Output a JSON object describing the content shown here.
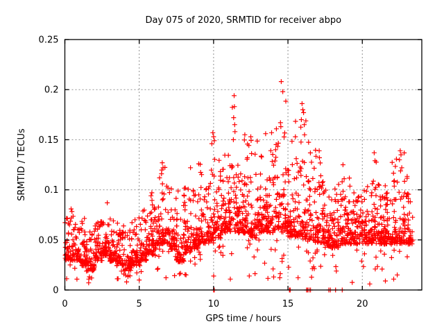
{
  "chart_data": {
    "type": "scatter",
    "title": "Day 075 of 2020, SRMTID for receiver abpo",
    "xlabel": "GPS time / hours",
    "ylabel": "SRMTID / TECUs",
    "xlim": [
      0,
      24
    ],
    "ylim": [
      0,
      0.25
    ],
    "xticks": [
      0,
      5,
      10,
      15,
      20
    ],
    "xticklabels": [
      "0",
      "5",
      "10",
      "15",
      "20"
    ],
    "yticks": [
      0,
      0.05,
      0.1,
      0.15,
      0.2,
      0.25
    ],
    "yticklabels": [
      "0",
      "0.05",
      "0.1",
      "0.15",
      "0.2",
      "0.25"
    ],
    "grid": true,
    "legend": "none",
    "marker": "plus",
    "marker_color": "#ff0000",
    "grid_color": "#909090",
    "frame_color": "#000000",
    "background_color": "#ffffff",
    "series_name": "SRMTID",
    "data_end_hour": 23.4,
    "density_model": {
      "note": "dense 30s-sampled scatter summarized as half-hour bins read from the plot",
      "columns": [
        "hour_start",
        "band_low",
        "band_high",
        "envelope_max"
      ],
      "points_per_bin": 48,
      "seed": 20200751,
      "bins": [
        [
          0.0,
          0.025,
          0.065,
          0.085
        ],
        [
          0.5,
          0.025,
          0.06,
          0.08
        ],
        [
          1.0,
          0.02,
          0.055,
          0.077
        ],
        [
          1.5,
          0.015,
          0.05,
          0.068
        ],
        [
          2.0,
          0.025,
          0.06,
          0.08
        ],
        [
          2.5,
          0.03,
          0.065,
          0.087
        ],
        [
          3.0,
          0.025,
          0.055,
          0.072
        ],
        [
          3.5,
          0.02,
          0.055,
          0.075
        ],
        [
          4.0,
          0.015,
          0.05,
          0.065
        ],
        [
          4.5,
          0.02,
          0.055,
          0.075
        ],
        [
          5.0,
          0.025,
          0.06,
          0.08
        ],
        [
          5.5,
          0.03,
          0.07,
          0.095
        ],
        [
          6.0,
          0.035,
          0.08,
          0.112
        ],
        [
          6.5,
          0.04,
          0.09,
          0.125
        ],
        [
          7.0,
          0.035,
          0.08,
          0.11
        ],
        [
          7.5,
          0.022,
          0.07,
          0.1
        ],
        [
          8.0,
          0.03,
          0.08,
          0.12
        ],
        [
          8.5,
          0.035,
          0.085,
          0.123
        ],
        [
          9.0,
          0.04,
          0.09,
          0.126
        ],
        [
          9.5,
          0.04,
          0.095,
          0.15
        ],
        [
          10.0,
          0.045,
          0.1,
          0.135
        ],
        [
          10.5,
          0.05,
          0.108,
          0.145
        ],
        [
          11.0,
          0.05,
          0.112,
          0.19
        ],
        [
          11.5,
          0.05,
          0.108,
          0.15
        ],
        [
          12.0,
          0.05,
          0.105,
          0.152
        ],
        [
          12.5,
          0.045,
          0.1,
          0.15
        ],
        [
          13.0,
          0.05,
          0.108,
          0.155
        ],
        [
          13.5,
          0.05,
          0.108,
          0.155
        ],
        [
          14.0,
          0.05,
          0.112,
          0.17
        ],
        [
          14.5,
          0.05,
          0.115,
          0.2
        ],
        [
          15.0,
          0.045,
          0.108,
          0.15
        ],
        [
          15.5,
          0.045,
          0.112,
          0.182
        ],
        [
          16.0,
          0.04,
          0.108,
          0.172
        ],
        [
          16.5,
          0.04,
          0.1,
          0.14
        ],
        [
          17.0,
          0.04,
          0.095,
          0.137
        ],
        [
          17.5,
          0.035,
          0.09,
          0.113
        ],
        [
          18.0,
          0.035,
          0.088,
          0.11
        ],
        [
          18.5,
          0.04,
          0.09,
          0.123
        ],
        [
          19.0,
          0.04,
          0.088,
          0.114
        ],
        [
          19.5,
          0.04,
          0.088,
          0.11
        ],
        [
          20.0,
          0.04,
          0.09,
          0.118
        ],
        [
          20.5,
          0.04,
          0.093,
          0.134
        ],
        [
          21.0,
          0.04,
          0.09,
          0.123
        ],
        [
          21.5,
          0.04,
          0.085,
          0.11
        ],
        [
          22.0,
          0.04,
          0.09,
          0.137
        ],
        [
          22.5,
          0.04,
          0.093,
          0.14
        ],
        [
          23.0,
          0.04,
          0.088,
          0.114
        ]
      ]
    },
    "highlight_points": [
      [
        2.85,
        0.087
      ],
      [
        5.85,
        0.097
      ],
      [
        6.5,
        0.116
      ],
      [
        6.55,
        0.127
      ],
      [
        6.6,
        0.122
      ],
      [
        8.45,
        0.122
      ],
      [
        9.0,
        0.126
      ],
      [
        9.95,
        0.157
      ],
      [
        10.0,
        0.153
      ],
      [
        10.05,
        0.149
      ],
      [
        11.33,
        0.15
      ],
      [
        11.35,
        0.172
      ],
      [
        11.38,
        0.194
      ],
      [
        11.4,
        0.183
      ],
      [
        11.42,
        0.165
      ],
      [
        11.44,
        0.158
      ],
      [
        12.1,
        0.155
      ],
      [
        12.5,
        0.153
      ],
      [
        13.5,
        0.156
      ],
      [
        13.9,
        0.157
      ],
      [
        14.5,
        0.167
      ],
      [
        14.52,
        0.163
      ],
      [
        14.55,
        0.208
      ],
      [
        14.65,
        0.198
      ],
      [
        15.5,
        0.153
      ],
      [
        15.9,
        0.17
      ],
      [
        15.95,
        0.186
      ],
      [
        16.0,
        0.18
      ],
      [
        16.05,
        0.177
      ],
      [
        16.1,
        0.165
      ],
      [
        17.1,
        0.139
      ],
      [
        17.12,
        0.132
      ],
      [
        18.7,
        0.125
      ],
      [
        20.8,
        0.137
      ],
      [
        20.85,
        0.129
      ],
      [
        22.5,
        0.13
      ],
      [
        22.55,
        0.139
      ],
      [
        22.6,
        0.135
      ],
      [
        22.65,
        0.122
      ]
    ],
    "zero_points_x": [
      10.0,
      10.05,
      15.1,
      15.15,
      16.25,
      16.32,
      16.42,
      16.52,
      17.75,
      17.85,
      18.2,
      18.65
    ],
    "low_outliers": [
      [
        1.8,
        0.012
      ],
      [
        4.15,
        0.008
      ],
      [
        5.0,
        0.01
      ],
      [
        7.7,
        0.016
      ],
      [
        8.15,
        0.015
      ],
      [
        12.4,
        0.014
      ],
      [
        20.5,
        0.006
      ],
      [
        22.35,
        0.015
      ]
    ]
  }
}
